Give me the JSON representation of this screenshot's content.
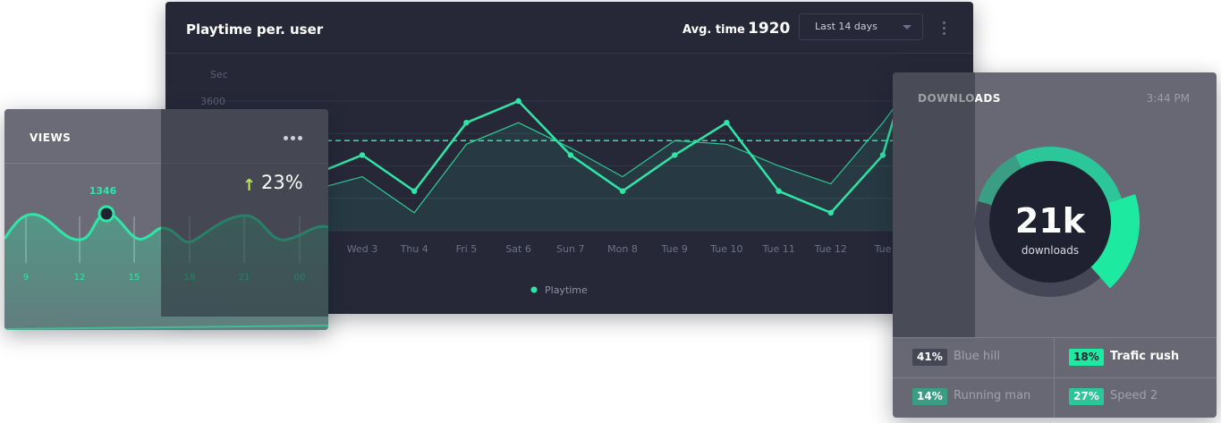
{
  "playtime": {
    "title": "Playtime per. user",
    "avg_label": "Avg. time",
    "avg_value": "1920",
    "range_select": "Last 14 days",
    "y_unit": "Sec",
    "y_tick_top": "3600",
    "legend": "Playtime",
    "colors": {
      "accent": "#2ee6a6",
      "background": "#262838"
    }
  },
  "chart_data": [
    {
      "type": "line",
      "title": "Playtime per. user",
      "ylabel": "Sec",
      "y_top_tick": 3600,
      "categories": [
        "Wed 3",
        "Thu 4",
        "Fri 5",
        "Sat 6",
        "Sun 7",
        "Mon 8",
        "Tue 9",
        "Tue 10",
        "Tue 11",
        "Tue 12",
        "Tue"
      ],
      "series": [
        {
          "name": "Playtime",
          "values": [
            2100,
            1100,
            3000,
            3600,
            2100,
            1100,
            2100,
            3000,
            1100,
            500,
            2100
          ]
        },
        {
          "values": [
            1500,
            500,
            2400,
            3000,
            2300,
            1500,
            2500,
            2400,
            1800,
            1300,
            3000
          ]
        }
      ],
      "reference_line": 2500,
      "legend": "bottom-center"
    },
    {
      "type": "area",
      "title": "VIEWS",
      "categories": [
        "9",
        "12",
        "15",
        "18",
        "21",
        "00"
      ],
      "highlight": {
        "label": "1346"
      },
      "change": "23%"
    },
    {
      "type": "pie",
      "title": "DOWNLOADS",
      "center_value": "21k",
      "center_label": "downloads",
      "slices": [
        {
          "label": "Blue hill",
          "value": 41,
          "color": "#454756"
        },
        {
          "label": "Trafic rush",
          "value": 18,
          "color": "#1de9a0"
        },
        {
          "label": "Running man",
          "value": 14,
          "color": "#3a9e85"
        },
        {
          "label": "Speed 2",
          "value": 27,
          "color": "#2bc79a"
        }
      ]
    }
  ],
  "views": {
    "title": "VIEWS",
    "highlight_value": "1346",
    "change_arrow": "↑",
    "change_pct": "23%",
    "x_ticks": [
      "9",
      "12",
      "15",
      "18",
      "21",
      "00"
    ]
  },
  "downloads": {
    "title": "DOWNLOADS",
    "time": "3:44 PM",
    "center_value": "21k",
    "center_label": "downloads",
    "items": [
      {
        "pct": "41%",
        "name": "Blue hill",
        "badge_color": "#454756",
        "text_color": "#a0a1ad"
      },
      {
        "pct": "18%",
        "name": "Trafic rush",
        "badge_color": "#1de9a0",
        "text_color": "#ffffff"
      },
      {
        "pct": "14%",
        "name": "Running man",
        "badge_color": "#3a9e85",
        "text_color": "#a0a1ad"
      },
      {
        "pct": "27%",
        "name": "Speed 2",
        "badge_color": "#2bc79a",
        "text_color": "#a0a1ad"
      }
    ]
  }
}
